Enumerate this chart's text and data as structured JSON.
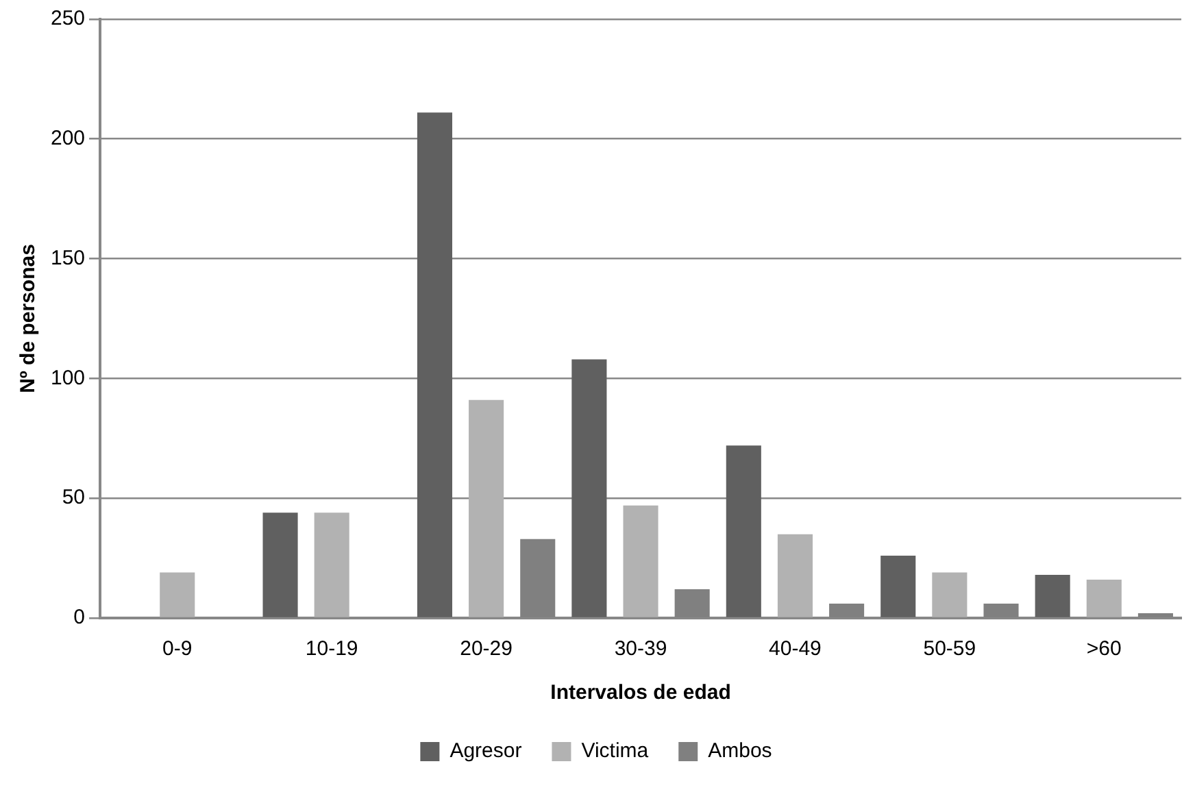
{
  "chart_data": {
    "type": "bar",
    "xlabel": "Intervalos de edad",
    "ylabel": "Nº de personas",
    "categories": [
      "0-9",
      "10-19",
      "20-29",
      "30-39",
      "40-49",
      "50-59",
      ">60"
    ],
    "series": [
      {
        "name": "Agresor",
        "color": "#606060",
        "values": [
          0,
          44,
          211,
          108,
          72,
          26,
          18
        ]
      },
      {
        "name": "Victima",
        "color": "#b2b2b2",
        "values": [
          19,
          44,
          91,
          47,
          35,
          19,
          16
        ]
      },
      {
        "name": "Ambos",
        "color": "#808080",
        "values": [
          0,
          0,
          33,
          12,
          6,
          6,
          2
        ]
      }
    ],
    "ylim": [
      0,
      250
    ],
    "yticks": [
      0,
      50,
      100,
      150,
      200,
      250
    ],
    "grid": "y",
    "legend": "bottom"
  }
}
